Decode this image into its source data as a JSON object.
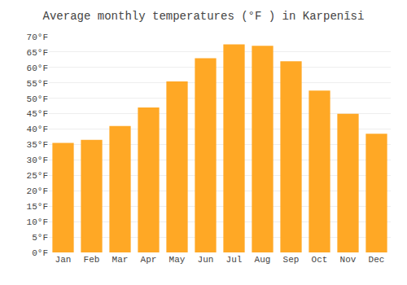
{
  "chart_data": {
    "type": "bar",
    "title": "Average monthly temperatures (°F ) in Karpenīsi",
    "categories": [
      "Jan",
      "Feb",
      "Mar",
      "Apr",
      "May",
      "Jun",
      "Jul",
      "Aug",
      "Sep",
      "Oct",
      "Nov",
      "Dec"
    ],
    "values": [
      35.5,
      36.5,
      41,
      47,
      55.5,
      63,
      67.5,
      67,
      62,
      52.5,
      45,
      38.5
    ],
    "color": "#FFA825",
    "ylim": [
      0,
      70
    ],
    "yticks": [
      {
        "value": 0,
        "label": "0°F"
      },
      {
        "value": 5,
        "label": "5°F"
      },
      {
        "value": 10,
        "label": "10°F"
      },
      {
        "value": 15,
        "label": "15°F"
      },
      {
        "value": 20,
        "label": "20°F"
      },
      {
        "value": 25,
        "label": "25°F"
      },
      {
        "value": 30,
        "label": "30°F"
      },
      {
        "value": 35,
        "label": "35°F"
      },
      {
        "value": 40,
        "label": "40°F"
      },
      {
        "value": 45,
        "label": "45°F"
      },
      {
        "value": 50,
        "label": "50°F"
      },
      {
        "value": 55,
        "label": "55°F"
      },
      {
        "value": 60,
        "label": "60°F"
      },
      {
        "value": 65,
        "label": "65°F"
      },
      {
        "value": 70,
        "label": "70°F"
      }
    ],
    "grid": true
  }
}
